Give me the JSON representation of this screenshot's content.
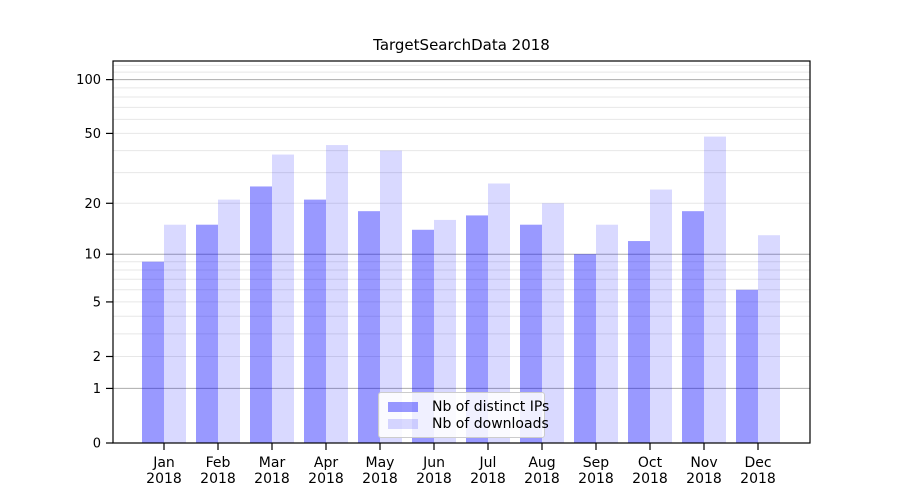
{
  "chart_data": {
    "type": "bar",
    "title": "TargetSearchData 2018",
    "categories": [
      "Jan",
      "Feb",
      "Mar",
      "Apr",
      "May",
      "Jun",
      "Jul",
      "Aug",
      "Sep",
      "Oct",
      "Nov",
      "Dec"
    ],
    "year_line": "2018",
    "series": [
      {
        "name": "Nb of distinct IPs",
        "color": "rgba(0,0,255,0.40)",
        "values": [
          9,
          15,
          25,
          21,
          18,
          14,
          17,
          15,
          10,
          12,
          18,
          6
        ]
      },
      {
        "name": "Nb of downloads",
        "color": "rgba(0,0,255,0.15)",
        "values": [
          15,
          21,
          38,
          43,
          40,
          16,
          26,
          20,
          15,
          24,
          48,
          13
        ]
      }
    ],
    "yticks": [
      100,
      50,
      20,
      10,
      5,
      2,
      1,
      0
    ],
    "scale": "log1p",
    "ylim": [
      0,
      127
    ],
    "grid": "both",
    "legend_position": "lower-center"
  }
}
